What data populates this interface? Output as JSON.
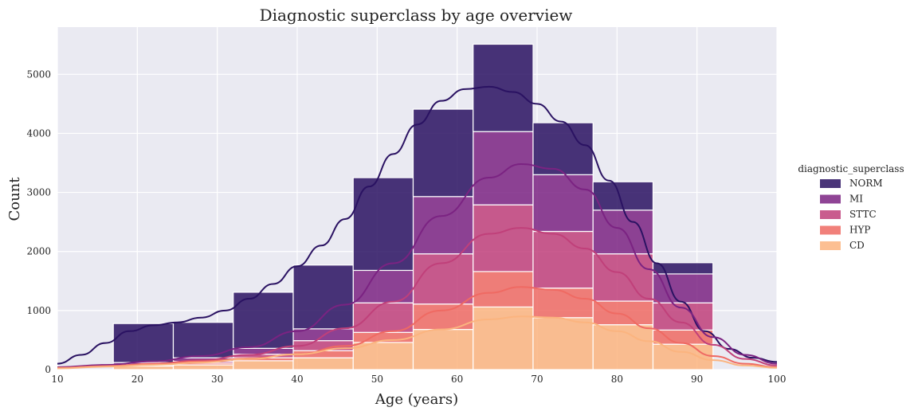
{
  "chart_data": {
    "type": "bar",
    "title": "Diagnostic superclass by age overview",
    "xlabel": "Age (years)",
    "ylabel": "Count",
    "xlim": [
      10,
      100
    ],
    "ylim": [
      0,
      5800
    ],
    "xticks": [
      10,
      20,
      30,
      40,
      50,
      60,
      70,
      80,
      90,
      100
    ],
    "yticks": [
      0,
      1000,
      2000,
      3000,
      4000,
      5000
    ],
    "grid": true,
    "legend": {
      "title": "diagnostic_superclass",
      "placement": "right"
    },
    "bin_edges": [
      17,
      24.5,
      32,
      39.5,
      47,
      54.5,
      62,
      69.5,
      77,
      84.5,
      92
    ],
    "series": [
      {
        "name": "NORM",
        "color": "#2a1262",
        "values": [
          660,
          600,
          950,
          1080,
          1570,
          1480,
          1480,
          880,
          480,
          190
        ],
        "kde": {
          "x": [
            10,
            13,
            16,
            19,
            22,
            25,
            28,
            31,
            34,
            37,
            40,
            43,
            46,
            49,
            52,
            55,
            58,
            61,
            64,
            67,
            70,
            73,
            76,
            79,
            82,
            85,
            88,
            91,
            94,
            97,
            100
          ],
          "y": [
            100,
            250,
            450,
            650,
            750,
            800,
            880,
            1000,
            1200,
            1450,
            1750,
            2100,
            2550,
            3100,
            3650,
            4150,
            4550,
            4750,
            4790,
            4700,
            4500,
            4200,
            3800,
            3200,
            2500,
            1800,
            1150,
            650,
            350,
            200,
            130
          ]
        }
      },
      {
        "name": "MI",
        "color": "#7b2382",
        "values": [
          30,
          60,
          100,
          200,
          550,
          970,
          1240,
          960,
          740,
          490
        ],
        "kde": {
          "x": [
            10,
            16,
            22,
            28,
            34,
            40,
            46,
            52,
            58,
            64,
            68,
            72,
            76,
            80,
            84,
            88,
            92,
            96,
            100
          ],
          "y": [
            40,
            80,
            140,
            230,
            380,
            650,
            1100,
            1800,
            2600,
            3250,
            3480,
            3400,
            3050,
            2400,
            1700,
            1050,
            550,
            250,
            100
          ]
        }
      },
      {
        "name": "STTC",
        "color": "#c0407a",
        "values": [
          20,
          30,
          60,
          170,
          500,
          850,
          1130,
          960,
          800,
          460
        ],
        "kde": {
          "x": [
            10,
            16,
            22,
            28,
            34,
            40,
            46,
            52,
            58,
            64,
            68,
            72,
            76,
            80,
            84,
            88,
            92,
            96,
            100
          ],
          "y": [
            30,
            60,
            100,
            160,
            250,
            400,
            700,
            1150,
            1800,
            2300,
            2400,
            2300,
            2050,
            1650,
            1200,
            800,
            420,
            180,
            70
          ]
        }
      },
      {
        "name": "HYP",
        "color": "#ef6a63",
        "values": [
          10,
          30,
          50,
          120,
          170,
          430,
          600,
          500,
          400,
          240
        ],
        "kde": {
          "x": [
            10,
            16,
            22,
            28,
            34,
            40,
            46,
            52,
            58,
            64,
            68,
            72,
            76,
            80,
            84,
            88,
            92,
            96,
            100
          ],
          "y": [
            30,
            60,
            100,
            140,
            190,
            260,
            400,
            650,
            1000,
            1300,
            1400,
            1350,
            1200,
            950,
            700,
            450,
            230,
            100,
            40
          ]
        }
      },
      {
        "name": "CD",
        "color": "#fbb47f",
        "values": [
          60,
          80,
          150,
          200,
          460,
          680,
          1060,
          880,
          760,
          430
        ],
        "kde": {
          "x": [
            10,
            16,
            22,
            28,
            34,
            40,
            46,
            52,
            58,
            64,
            68,
            72,
            76,
            80,
            84,
            88,
            92,
            96,
            100
          ],
          "y": [
            20,
            50,
            80,
            120,
            180,
            260,
            360,
            500,
            680,
            850,
            900,
            880,
            800,
            650,
            480,
            300,
            160,
            70,
            30
          ]
        }
      }
    ]
  }
}
